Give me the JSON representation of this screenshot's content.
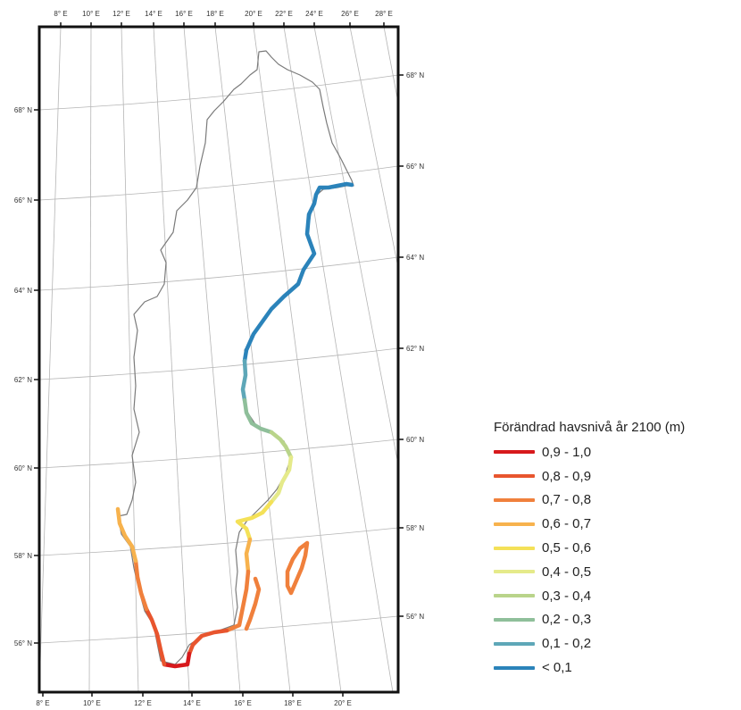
{
  "map": {
    "top_lon_labels": [
      "8° E",
      "10° E",
      "12° E",
      "14° E",
      "16° E",
      "18° E",
      "20° E",
      "22° E",
      "24° E",
      "26° E",
      "28° E"
    ],
    "bottom_lon_labels": [
      "8° E",
      "10° E",
      "12° E",
      "14° E",
      "16° E",
      "18° E",
      "20° E"
    ],
    "left_lat_labels": [
      "68° N",
      "66° N",
      "64° N",
      "62° N",
      "60° N",
      "58° N",
      "56° N"
    ],
    "right_lat_labels": [
      "68° N",
      "66° N",
      "64° N",
      "62° N",
      "60° N",
      "58° N",
      "56° N"
    ],
    "border_color": "#7a7a7a",
    "graticule_color": "#b5b5b5"
  },
  "legend": {
    "title": "Förändrad havsnivå år 2100 (m)",
    "items": [
      {
        "label": "0,9 - 1,0",
        "color": "#d7191c"
      },
      {
        "label": "0,8 - 0,9",
        "color": "#e8552e"
      },
      {
        "label": "0,7 - 0,8",
        "color": "#f0803c"
      },
      {
        "label": "0,6 - 0,7",
        "color": "#f7b24d"
      },
      {
        "label": "0,5 - 0,6",
        "color": "#f4e158"
      },
      {
        "label": "0,4 - 0,5",
        "color": "#e5ea8a"
      },
      {
        "label": "0,3 - 0,4",
        "color": "#b9d48a"
      },
      {
        "label": "0,2 - 0,3",
        "color": "#8fbf9a"
      },
      {
        "label": "0,1 - 0,2",
        "color": "#5ea7b8"
      },
      {
        "label": "< 0,1",
        "color": "#2b83ba"
      }
    ]
  }
}
